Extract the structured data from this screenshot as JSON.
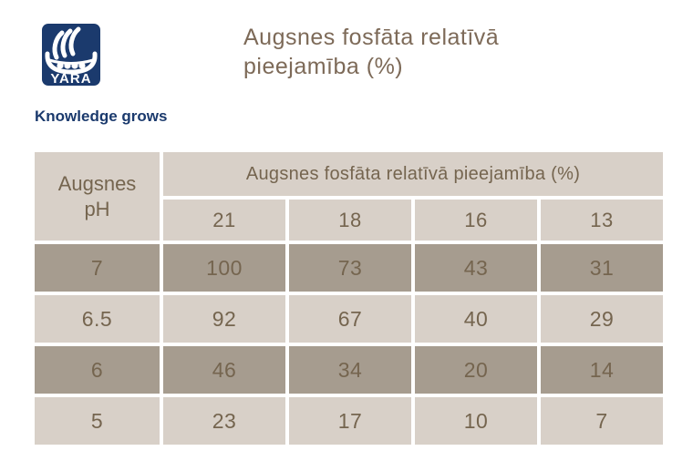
{
  "brand": {
    "logo_text": "YARA",
    "tagline": "Knowledge grows"
  },
  "title": {
    "text": "Augsnes fosfāta relatīvā pieejamība (%)"
  },
  "table": {
    "corner_header": "Augsnes pH",
    "span_header": "Augsnes fosfāta relatīvā pieejamība (%)",
    "column_headers": [
      "21",
      "18",
      "16",
      "13"
    ],
    "rows": [
      {
        "ph": "7",
        "shade": "dark",
        "values": [
          "100",
          "73",
          "43",
          "31"
        ]
      },
      {
        "ph": "6.5",
        "shade": "light",
        "values": [
          "92",
          "67",
          "40",
          "29"
        ]
      },
      {
        "ph": "6",
        "shade": "dark",
        "values": [
          "46",
          "34",
          "20",
          "14"
        ]
      },
      {
        "ph": "5",
        "shade": "light",
        "values": [
          "23",
          "17",
          "10",
          "7"
        ]
      }
    ]
  },
  "colors": {
    "brand_navy": "#1b3a6d",
    "title_brown": "#7d6a58",
    "table_text_brown": "#75654f",
    "cell_light": "#d8d0c8",
    "cell_dark": "#a69c8f",
    "background": "#ffffff"
  },
  "chart_data": {
    "type": "table",
    "title": "Augsnes fosfāta relatīvā pieejamība (%)",
    "row_header": "Augsnes pH",
    "column_group_label": "Augsnes fosfāta relatīvā pieejamība (%)",
    "columns": [
      21,
      18,
      16,
      13
    ],
    "rows": [
      {
        "ph": 7,
        "values": [
          100,
          73,
          43,
          31
        ]
      },
      {
        "ph": 6.5,
        "values": [
          92,
          67,
          40,
          29
        ]
      },
      {
        "ph": 6,
        "values": [
          46,
          34,
          20,
          14
        ]
      },
      {
        "ph": 5,
        "values": [
          23,
          17,
          10,
          7
        ]
      }
    ]
  }
}
